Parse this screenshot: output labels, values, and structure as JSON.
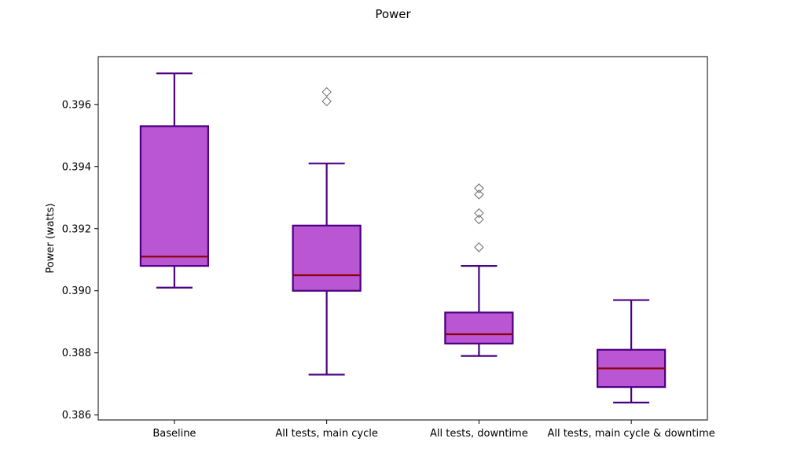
{
  "chart_data": {
    "type": "box",
    "title": "Power",
    "xlabel": "",
    "ylabel": "Power (watts)",
    "ylim": [
      0.38584,
      0.39754
    ],
    "yticks": [
      0.386,
      0.388,
      0.39,
      0.392,
      0.394,
      0.396
    ],
    "ytick_labels": [
      "0.386",
      "0.388",
      "0.390",
      "0.392",
      "0.394",
      "0.396"
    ],
    "grid": false,
    "categories": [
      "Baseline",
      "All tests, main cycle",
      "All tests, downtime",
      "All tests, main cycle & downtime"
    ],
    "boxes": [
      {
        "whisker_low": 0.3901,
        "q1": 0.3908,
        "median": 0.3911,
        "q3": 0.3953,
        "whisker_high": 0.397,
        "outliers": []
      },
      {
        "whisker_low": 0.3873,
        "q1": 0.39,
        "median": 0.3905,
        "q3": 0.3921,
        "whisker_high": 0.3941,
        "outliers": [
          0.3961,
          0.3964
        ]
      },
      {
        "whisker_low": 0.3879,
        "q1": 0.3883,
        "median": 0.3886,
        "q3": 0.3893,
        "whisker_high": 0.3908,
        "outliers": [
          0.3914,
          0.3923,
          0.3925,
          0.3931,
          0.3933
        ]
      },
      {
        "whisker_low": 0.3864,
        "q1": 0.3869,
        "median": 0.3875,
        "q3": 0.3881,
        "whisker_high": 0.3897,
        "outliers": []
      }
    ],
    "colors": {
      "box_fill": "#BA55D3",
      "box_edge": "#4B0082",
      "median": "#8B0000",
      "outlier_edge": "#777777"
    }
  }
}
